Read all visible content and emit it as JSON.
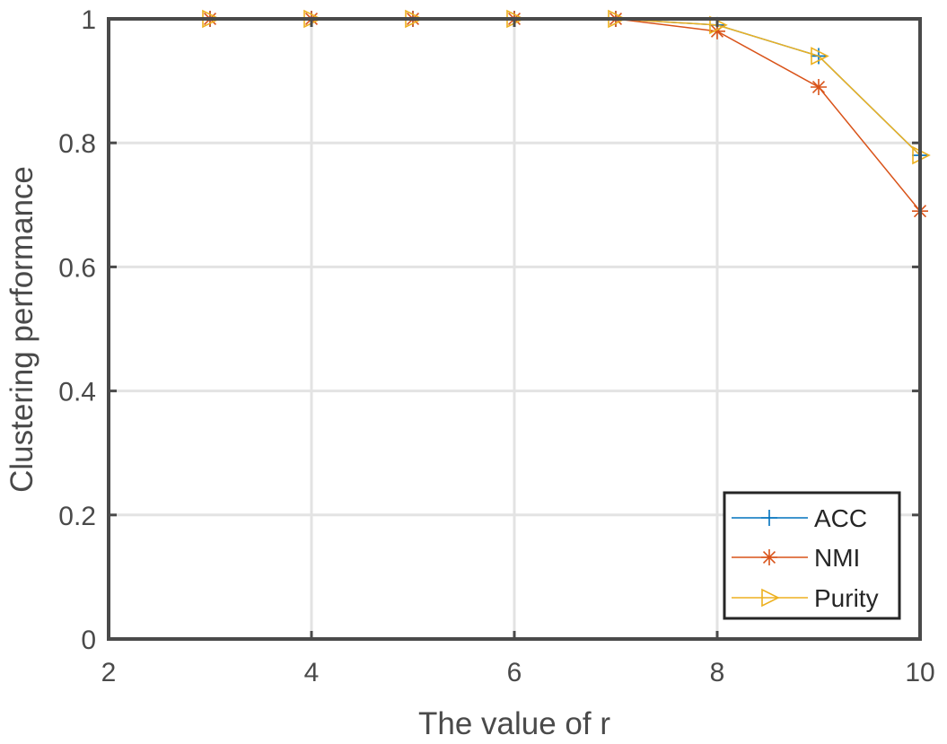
{
  "chart_data": {
    "type": "line",
    "title": "",
    "xlabel": "The value of r",
    "ylabel": "Clustering performance",
    "xlim": [
      2,
      10
    ],
    "ylim": [
      0,
      1
    ],
    "xticks": [
      2,
      4,
      6,
      8,
      10
    ],
    "yticks": [
      0,
      0.2,
      0.4,
      0.6,
      0.8,
      1
    ],
    "xtick_labels": [
      "2",
      "4",
      "6",
      "8",
      "10"
    ],
    "ytick_labels": [
      "0",
      "0.2",
      "0.4",
      "0.6",
      "0.8",
      "1"
    ],
    "grid": true,
    "legend_position": "bottom-right",
    "x": [
      3,
      4,
      5,
      6,
      7,
      8,
      9,
      10
    ],
    "series": [
      {
        "name": "ACC",
        "marker": "plus",
        "color": "#0072bd",
        "values": [
          1,
          1,
          1,
          1,
          1,
          0.99,
          0.94,
          0.78
        ]
      },
      {
        "name": "NMI",
        "marker": "asterisk",
        "color": "#d95319",
        "values": [
          1,
          1,
          1,
          1,
          1,
          0.98,
          0.89,
          0.69
        ]
      },
      {
        "name": "Purity",
        "marker": "triangle-right",
        "color": "#edb120",
        "values": [
          1,
          1,
          1,
          1,
          1,
          0.99,
          0.94,
          0.78
        ]
      }
    ]
  }
}
